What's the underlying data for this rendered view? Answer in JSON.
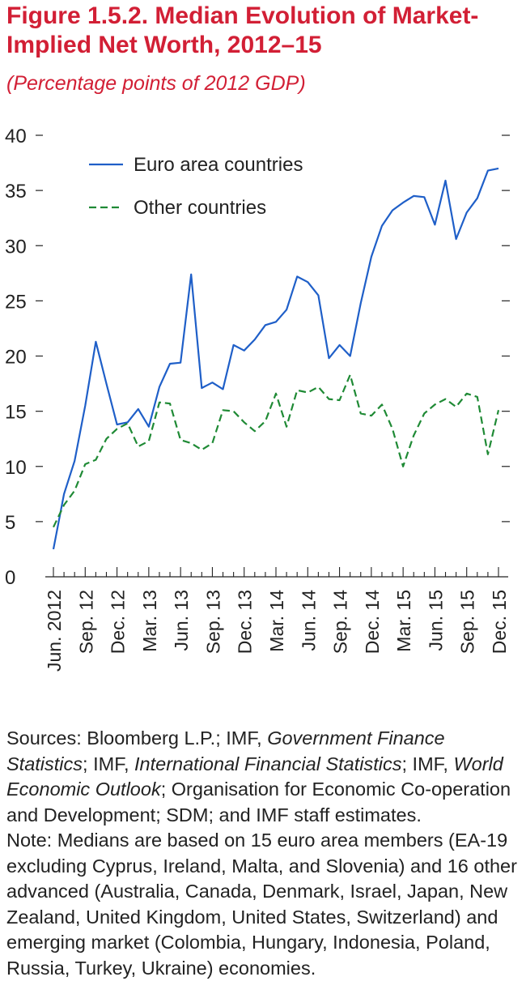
{
  "figure": {
    "title": "Figure 1.5.2. Median Evolution of Market-Implied Net Worth, 2012–15",
    "subtitle": "(Percentage points of 2012 GDP)"
  },
  "chart_data": {
    "type": "line",
    "xlabel": "",
    "ylabel": "",
    "ylim": [
      0,
      40
    ],
    "yticks": [
      "0",
      "5",
      "10",
      "15",
      "20",
      "25",
      "30",
      "35",
      "40"
    ],
    "x_tick_labels": [
      "Jun. 2012",
      "Sep. 12",
      "Dec. 12",
      "Mar. 13",
      "Jun. 13",
      "Sep. 13",
      "Dec. 13",
      "Mar. 14",
      "Jun. 14",
      "Sep. 14",
      "Dec. 14",
      "Mar. 15",
      "Jun. 15",
      "Sep. 15",
      "Dec. 15"
    ],
    "legend_position": "top-left",
    "series": [
      {
        "name": "Euro area countries",
        "color": "#1f5fc8",
        "style": "solid",
        "values": [
          2.5,
          7.5,
          10.5,
          15.5,
          21.3,
          17.5,
          13.8,
          14.0,
          15.2,
          13.6,
          17.2,
          19.3,
          19.4,
          27.4,
          17.1,
          17.6,
          17.0,
          21.0,
          20.5,
          21.5,
          22.8,
          23.1,
          24.2,
          27.2,
          26.7,
          25.5,
          19.8,
          21.0,
          20.0,
          24.8,
          29.0,
          31.8,
          33.2,
          33.9,
          34.5,
          34.4,
          31.9,
          35.9,
          30.6,
          33.0,
          34.3,
          36.8,
          37.0
        ]
      },
      {
        "name": "Other countries",
        "color": "#1f8a35",
        "style": "dashed",
        "values": [
          4.5,
          6.5,
          7.8,
          10.2,
          10.6,
          12.5,
          13.4,
          13.9,
          11.8,
          12.3,
          15.8,
          15.7,
          12.4,
          12.1,
          11.5,
          12.1,
          15.1,
          15.0,
          14.0,
          13.2,
          14.1,
          16.6,
          13.6,
          16.9,
          16.7,
          17.2,
          16.1,
          16.0,
          18.3,
          14.8,
          14.6,
          15.6,
          13.4,
          10.0,
          12.8,
          14.8,
          15.6,
          16.1,
          15.4,
          16.6,
          16.3,
          11.1,
          15.1
        ]
      }
    ]
  },
  "notes": {
    "sources_label": "Sources: Bloomberg L.P.; IMF, ",
    "src_gfs": "Government Finance Statistics",
    "src_sep1": "; IMF, ",
    "src_ifs": "International Financial Statistics",
    "src_sep2": "; IMF, ",
    "src_weo": "World Economic Outlook",
    "src_rest": "; Organisation for Economic Co-operation and Development; SDM; and IMF staff estimates.",
    "note": "Note: Medians are based on 15 euro area members (EA-19 excluding Cyprus, Ireland, Malta, and Slovenia) and 16 other advanced (Australia, Canada, Denmark, Israel, Japan, New Zealand, United Kingdom, United States, Switzerland) and emerging market (Colombia, Hungary, Indonesia, Poland, Russia, Turkey, Ukraine) economies."
  }
}
